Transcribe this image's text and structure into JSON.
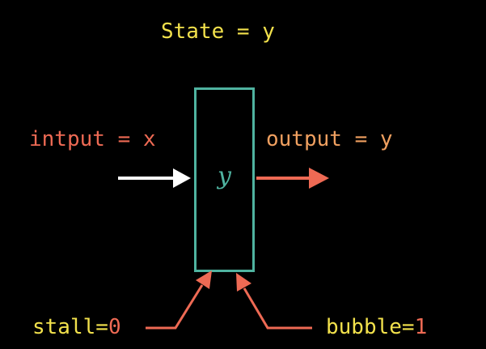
{
  "state": {
    "text": "State = y",
    "color": "#f2e14c"
  },
  "input": {
    "text": "intput = x",
    "color": "#ee6a54"
  },
  "output": {
    "text": "output = y",
    "color": "#f0a060"
  },
  "register": {
    "value": "y",
    "value_color": "#4fb3a0",
    "border_color": "#4fb3a0"
  },
  "stall": {
    "name": "stall",
    "equals": "=",
    "value": "0",
    "name_color": "#f2e14c",
    "value_color": "#ee6a54"
  },
  "bubble": {
    "name": "bubble",
    "equals": "=",
    "value": "1",
    "name_color": "#f2e14c",
    "value_color": "#ee6a54"
  },
  "arrow_colors": {
    "input": "#ffffff",
    "output": "#ee6a54",
    "control": "#ee6a54"
  }
}
